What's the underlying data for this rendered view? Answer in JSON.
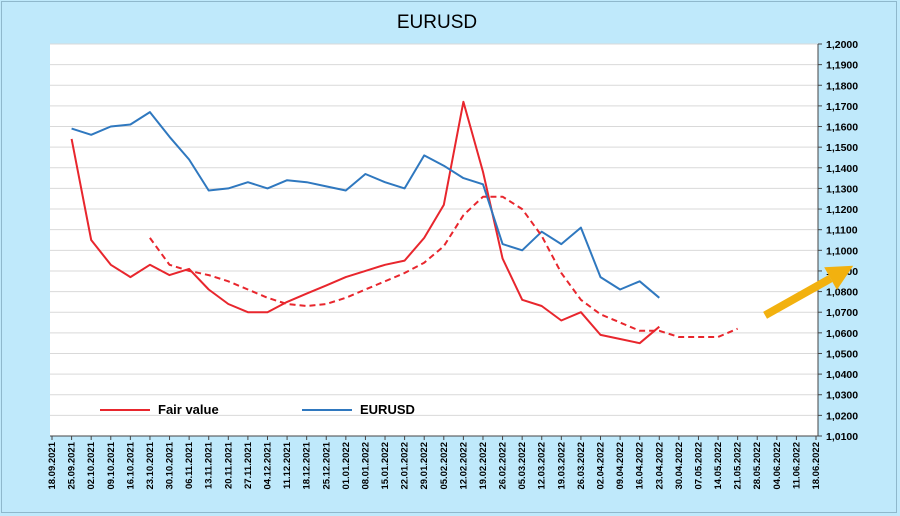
{
  "chart_data": {
    "type": "line",
    "title": "EURUSD",
    "xlabel": "",
    "ylabel": "",
    "ylim": [
      1.01,
      1.2
    ],
    "y_ticks": [
      "1,0100",
      "1,0200",
      "1,0300",
      "1,0400",
      "1,0500",
      "1,0600",
      "1,0700",
      "1,0800",
      "1,0900",
      "1,1000",
      "1,1100",
      "1,1200",
      "1,1300",
      "1,1400",
      "1,1500",
      "1,1600",
      "1,1700",
      "1,1800",
      "1,1900",
      "1,2000"
    ],
    "y_axis_position": "right",
    "grid": "horizontal",
    "legend_position": "bottom-left",
    "categories": [
      "18.09.2021",
      "25.09.2021",
      "02.10.2021",
      "09.10.2021",
      "16.10.2021",
      "23.10.2021",
      "30.10.2021",
      "06.11.2021",
      "13.11.2021",
      "20.11.2021",
      "27.11.2021",
      "04.12.2021",
      "11.12.2021",
      "18.12.2021",
      "25.12.2021",
      "01.01.2022",
      "08.01.2022",
      "15.01.2022",
      "22.01.2022",
      "29.01.2022",
      "05.02.2022",
      "12.02.2022",
      "19.02.2022",
      "26.02.2022",
      "05.03.2022",
      "12.03.2022",
      "19.03.2022",
      "26.03.2022",
      "02.04.2022",
      "09.04.2022",
      "16.04.2022",
      "23.04.2022",
      "30.04.2022",
      "07.05.2022",
      "14.05.2022",
      "21.05.2022",
      "28.05.2022",
      "04.06.2022",
      "11.06.2022",
      "18.06.2022"
    ],
    "series": [
      {
        "name": "Fair value",
        "color": "#e8262d",
        "style": "solid",
        "values": [
          null,
          1.154,
          1.105,
          1.093,
          1.087,
          1.093,
          1.088,
          1.091,
          1.081,
          1.074,
          1.07,
          1.07,
          1.075,
          1.079,
          1.083,
          1.087,
          1.09,
          1.093,
          1.095,
          1.106,
          1.122,
          1.172,
          1.138,
          1.096,
          1.076,
          1.073,
          1.066,
          1.07,
          1.059,
          1.057,
          1.055,
          1.063,
          null,
          null,
          null,
          null,
          null,
          null,
          null,
          null
        ]
      },
      {
        "name": "EURUSD",
        "color": "#2f78bf",
        "style": "solid",
        "values": [
          null,
          1.159,
          1.156,
          1.16,
          1.161,
          1.167,
          1.155,
          1.144,
          1.129,
          1.13,
          1.133,
          1.13,
          1.134,
          1.133,
          1.131,
          1.129,
          1.137,
          1.133,
          1.13,
          1.146,
          1.141,
          1.135,
          1.132,
          1.103,
          1.1,
          1.109,
          1.103,
          1.111,
          1.087,
          1.081,
          1.085,
          1.077,
          null,
          null,
          null,
          null,
          null,
          null,
          null,
          null
        ]
      },
      {
        "name": "",
        "color": "#e8262d",
        "style": "dashed",
        "values": [
          null,
          null,
          null,
          null,
          null,
          1.106,
          1.093,
          1.09,
          1.088,
          1.085,
          1.081,
          1.077,
          1.074,
          1.073,
          1.074,
          1.077,
          1.081,
          1.085,
          1.089,
          1.094,
          1.102,
          1.117,
          1.126,
          1.126,
          1.12,
          1.107,
          1.089,
          1.076,
          1.069,
          1.065,
          1.061,
          1.061,
          1.058,
          1.058,
          1.058,
          1.062,
          null,
          null,
          null,
          null
        ]
      }
    ],
    "annotations": [
      {
        "kind": "arrow",
        "color": "#f2b10f",
        "from": {
          "x_index": 36.4,
          "y": 1.0685
        },
        "to": {
          "x_index": 40.9,
          "y": 1.0925
        }
      }
    ]
  },
  "legend": {
    "fair_value": "Fair value",
    "eurusd": "EURUSD"
  }
}
